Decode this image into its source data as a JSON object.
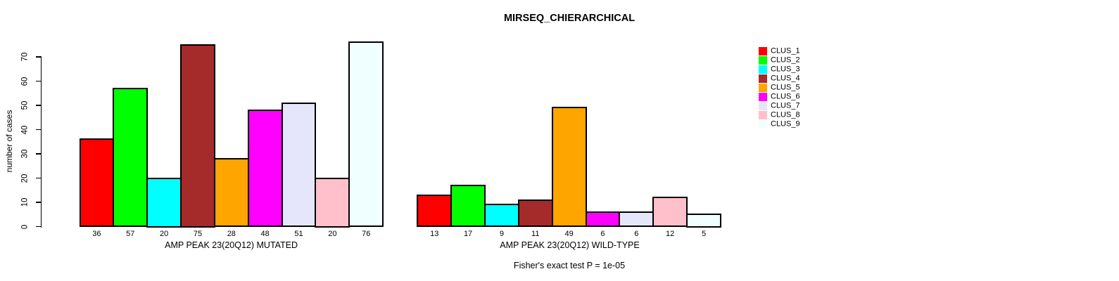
{
  "chart_data": {
    "type": "bar",
    "title": "MIRSEQ_CHIERARCHICAL",
    "ylabel": "number of cases",
    "ylim": [
      0,
      70
    ],
    "yticks": [
      0,
      10,
      20,
      30,
      40,
      50,
      60,
      70
    ],
    "grid": false,
    "legend_position": "right",
    "series": [
      {
        "name": "CLUS_1",
        "color": "#FF0000"
      },
      {
        "name": "CLUS_2",
        "color": "#00FF00"
      },
      {
        "name": "CLUS_3",
        "color": "#00FFFF"
      },
      {
        "name": "CLUS_4",
        "color": "#A52A2A"
      },
      {
        "name": "CLUS_5",
        "color": "#FFA500"
      },
      {
        "name": "CLUS_6",
        "color": "#FF00FF"
      },
      {
        "name": "CLUS_7",
        "color": "#E6E6FA"
      },
      {
        "name": "CLUS_8",
        "color": "#FFC0CB"
      },
      {
        "name": "CLUS_9",
        "color": "#F0FFFF"
      }
    ],
    "panels": [
      {
        "xlabel": "AMP PEAK 23(20Q12) MUTATED",
        "values": [
          36,
          57,
          20,
          75,
          28,
          48,
          51,
          20,
          76
        ]
      },
      {
        "xlabel": "AMP PEAK 23(20Q12) WILD-TYPE",
        "values": [
          13,
          17,
          9,
          11,
          49,
          6,
          6,
          12,
          5
        ]
      }
    ],
    "footer": "Fisher's exact test P = 1e-05"
  }
}
